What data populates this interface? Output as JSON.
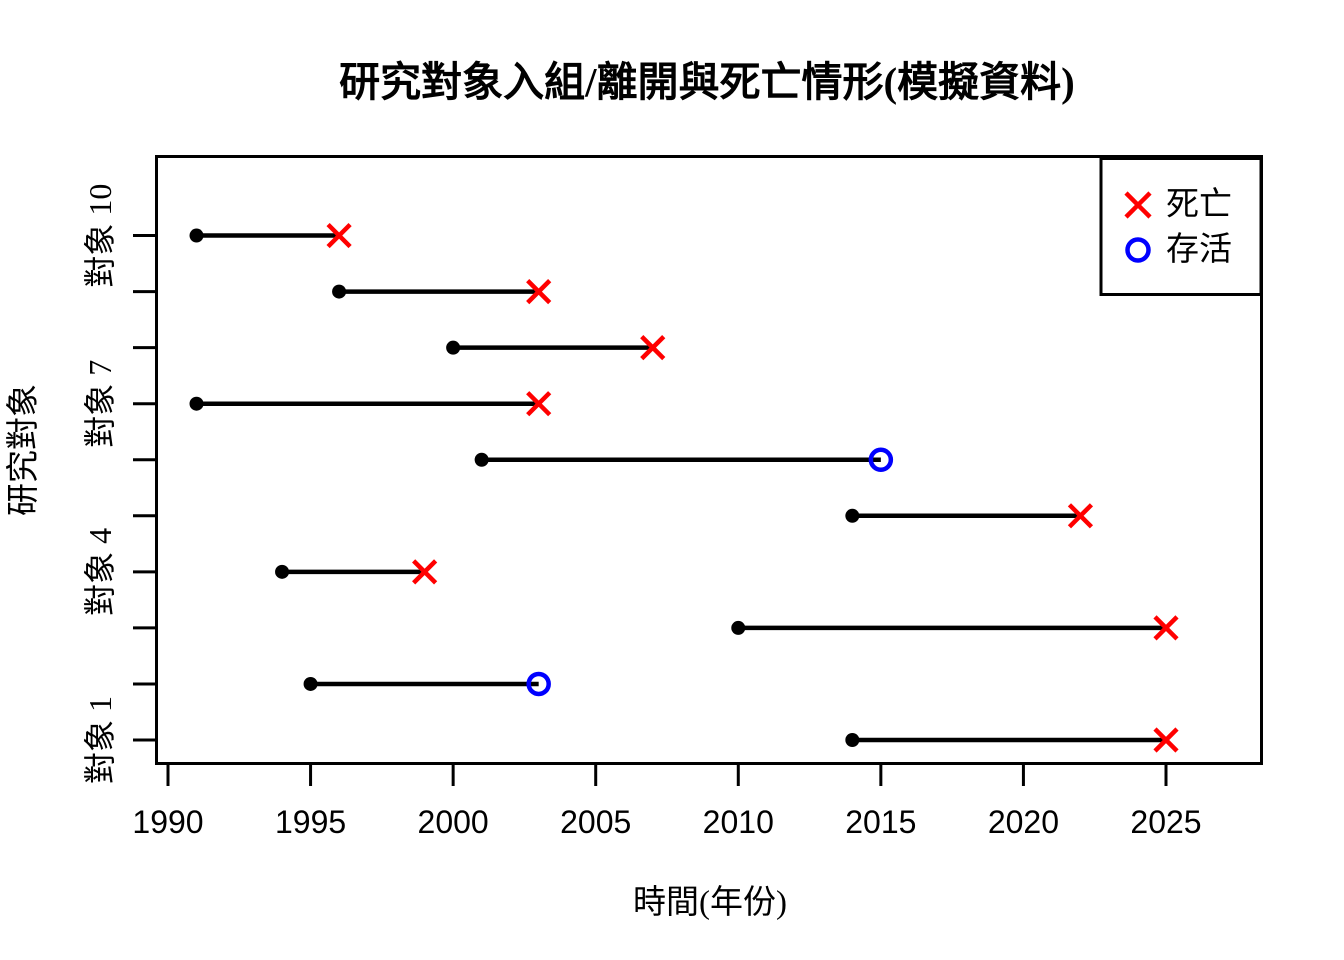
{
  "title": "研究對象入組/離開與死亡情形(模擬資料)",
  "x_axis": {
    "label": "時間(年份)",
    "ticks": [
      1990,
      1995,
      2000,
      2005,
      2010,
      2015,
      2020,
      2025
    ]
  },
  "y_axis": {
    "label": "研究對象",
    "tick_subjects": [
      1,
      2,
      3,
      4,
      5,
      6,
      7,
      8,
      9,
      10
    ],
    "tick_labels": [
      {
        "subject": 1,
        "label": "對象 1"
      },
      {
        "subject": 4,
        "label": "對象 4"
      },
      {
        "subject": 7,
        "label": "對象 7"
      },
      {
        "subject": 10,
        "label": "對象 10"
      }
    ]
  },
  "legend": {
    "position": "topright",
    "items": [
      {
        "symbol": "x-cross",
        "label": "死亡",
        "color": "#ff0000"
      },
      {
        "symbol": "open-circle",
        "label": "存活",
        "color": "#0000ff"
      }
    ]
  },
  "colors": {
    "death": "#ff0000",
    "survival": "#0000ff",
    "line": "#000000",
    "background": "#ffffff"
  },
  "chart_data": {
    "type": "line",
    "subtype": "interval-event-timeline",
    "title": "研究對象入組/離開與死亡情形(模擬資料)",
    "xlabel": "時間(年份)",
    "ylabel": "研究對象",
    "xlim": [
      1989.6,
      2028.4
    ],
    "x_ticks": [
      1990,
      1995,
      2000,
      2005,
      2010,
      2015,
      2020,
      2025
    ],
    "grid": false,
    "legend_position": "topright",
    "subjects": [
      {
        "id": 1,
        "enroll_year": 2014,
        "exit_year": 2025,
        "event": "death"
      },
      {
        "id": 2,
        "enroll_year": 1995,
        "exit_year": 2003,
        "event": "survival"
      },
      {
        "id": 3,
        "enroll_year": 2010,
        "exit_year": 2025,
        "event": "death"
      },
      {
        "id": 4,
        "enroll_year": 1994,
        "exit_year": 1999,
        "event": "death"
      },
      {
        "id": 5,
        "enroll_year": 2014,
        "exit_year": 2022,
        "event": "death"
      },
      {
        "id": 6,
        "enroll_year": 2001,
        "exit_year": 2015,
        "event": "survival"
      },
      {
        "id": 7,
        "enroll_year": 1991,
        "exit_year": 2003,
        "event": "death"
      },
      {
        "id": 8,
        "enroll_year": 2000,
        "exit_year": 2007,
        "event": "death"
      },
      {
        "id": 9,
        "enroll_year": 1996,
        "exit_year": 2003,
        "event": "death"
      },
      {
        "id": 10,
        "enroll_year": 1991,
        "exit_year": 1996,
        "event": "death"
      }
    ]
  }
}
